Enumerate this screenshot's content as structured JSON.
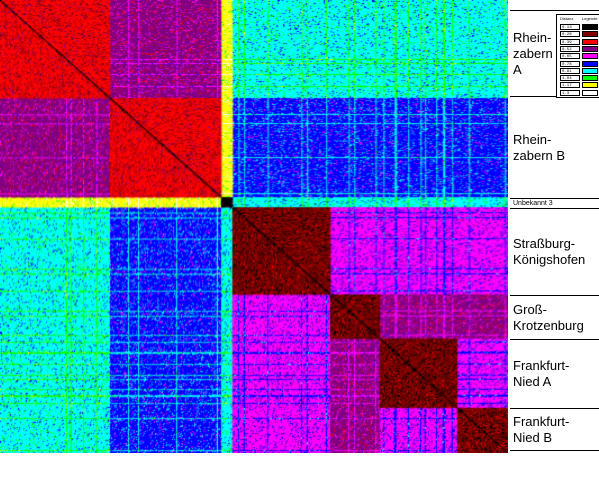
{
  "chart_data": {
    "type": "heatmap",
    "title": "",
    "xlabel": "",
    "ylabel": "",
    "groups": [
      {
        "name": "Rhein-\nzabern\nA",
        "start": 0,
        "end": 98
      },
      {
        "name": "Rhein-\nzabern B",
        "start": 98,
        "end": 197
      },
      {
        "name": "Unbekannt 3",
        "start": 197,
        "end": 207
      },
      {
        "name": "Straßburg-\nKönigshofen",
        "start": 207,
        "end": 294
      },
      {
        "name": "Groß-\nKrotzenburg",
        "start": 294,
        "end": 338
      },
      {
        "name": "Frankfurt-\nNied A",
        "start": 338,
        "end": 407
      },
      {
        "name": "Frankfurt-\nNied B",
        "start": 407,
        "end": 452
      }
    ],
    "color_scale": [
      "#000000",
      "#800000",
      "#ff0000",
      "#800080",
      "#ff00ff",
      "#0000ff",
      "#00ffff",
      "#00ff00",
      "#ffff00",
      "#ffffff"
    ],
    "block_levels": [
      [
        2,
        3,
        8,
        6,
        6,
        6,
        6
      ],
      [
        3,
        2,
        8,
        5,
        5,
        5,
        5
      ],
      [
        8,
        8,
        0,
        6,
        6,
        6,
        6
      ],
      [
        6,
        5,
        6,
        1,
        4,
        4,
        4
      ],
      [
        6,
        5,
        6,
        4,
        1,
        3,
        3
      ],
      [
        6,
        5,
        6,
        4,
        3,
        1,
        4
      ],
      [
        6,
        5,
        6,
        4,
        3,
        4,
        1
      ]
    ]
  },
  "legend": {
    "header_left": "Distanz",
    "header_right": "Legende",
    "entries": [
      {
        "value": "0.13",
        "color": "#000000"
      },
      {
        "value": "0.26",
        "color": "#800000"
      },
      {
        "value": "0.39",
        "color": "#ff0000"
      },
      {
        "value": "0.52",
        "color": "#800080"
      },
      {
        "value": "0.65",
        "color": "#ff00ff"
      },
      {
        "value": "0.78",
        "color": "#0000ff"
      },
      {
        "value": "0.91",
        "color": "#00ffff"
      },
      {
        "value": "1.04",
        "color": "#00ff00"
      },
      {
        "value": "1.17",
        "color": "#ffff00"
      },
      {
        "value": "1.3",
        "color": "#ffffff"
      }
    ]
  }
}
